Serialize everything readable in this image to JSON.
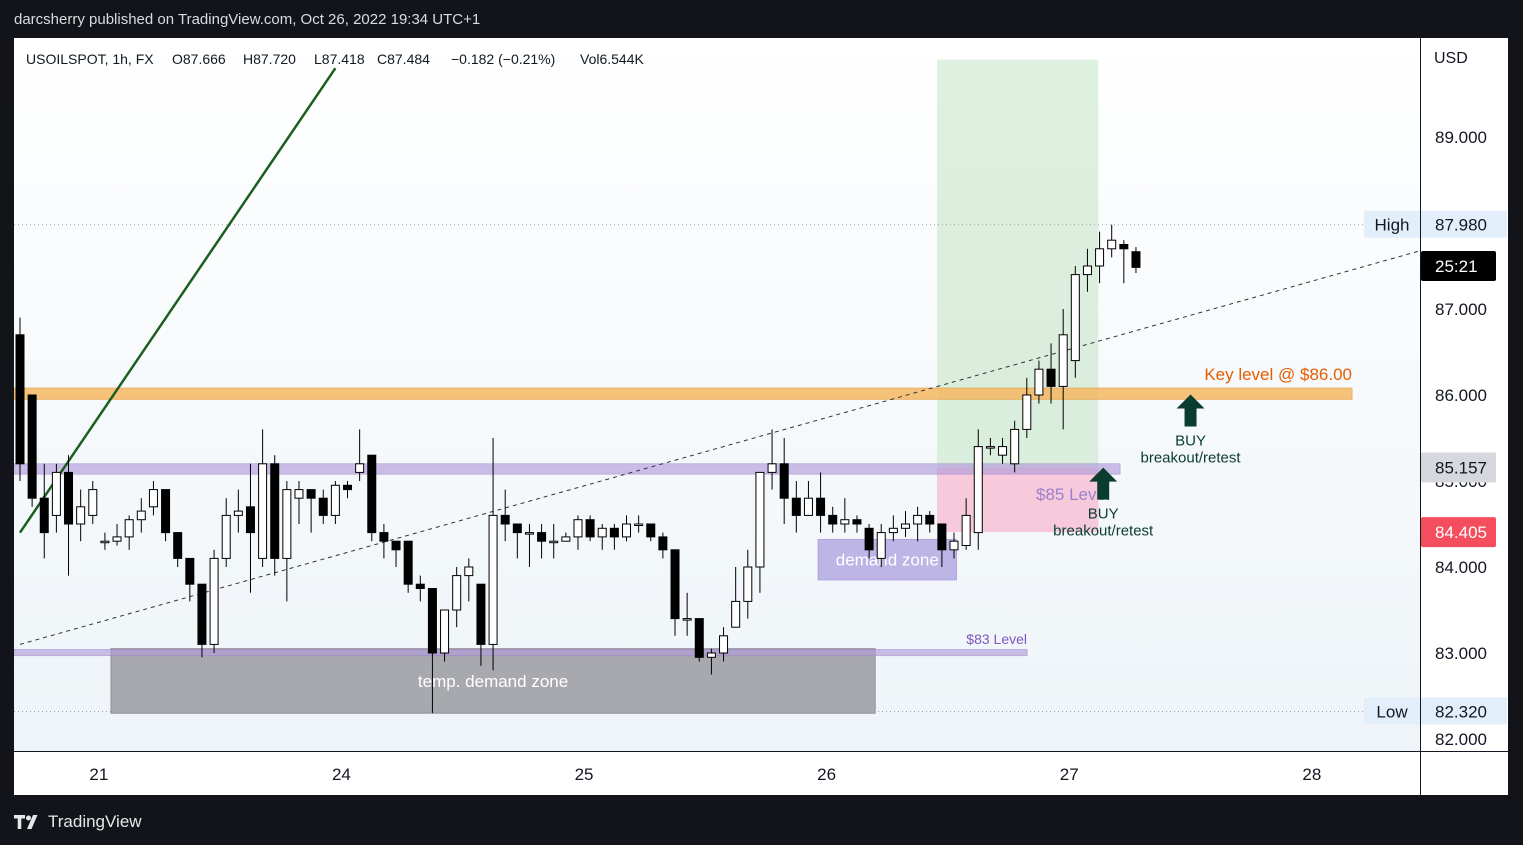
{
  "header": {
    "publisher_line": "darcsherry published on TradingView.com, Oct 26, 2022 19:34 UTC+1"
  },
  "legend": {
    "symbol": "USOILSPOT, 1h, FX",
    "open": "O87.666",
    "high": "H87.720",
    "low": "L87.418",
    "close": "C87.484",
    "change": "−0.182 (−0.21%)",
    "volume": "Vol6.544K"
  },
  "footer": {
    "brand": "TradingView"
  },
  "colors": {
    "frame_bg": "#121419",
    "bull_body": "#ffffff",
    "bear_body": "#000000",
    "trendline": "#1b5e20",
    "key_level": "#f7b55b",
    "level_85": "#b39ddb",
    "level_83": "#b39ddb",
    "demand_zone": "#9c9ca3",
    "demand_zone_small": "#b9aee6",
    "target_zone": "#c8e6c9",
    "stop_zone": "#f8bbd0",
    "buy_arrow": "#0b3d2e",
    "last_price_tag": "#000000",
    "red_tag": "#f44e5e",
    "current_tag": "#d6d8dd"
  },
  "chart_data": {
    "type": "candlestick",
    "symbol": "USOILSPOT",
    "interval": "1h",
    "currency": "USD",
    "ylim": [
      81.85,
      89.9
    ],
    "y_ticks": [
      "89.000",
      "87.000",
      "86.000",
      "85.000",
      "84.000",
      "83.000",
      "82.000"
    ],
    "x_ticks": [
      {
        "label": "21",
        "index": 6.5
      },
      {
        "label": "24",
        "index": 26.5
      },
      {
        "label": "25",
        "index": 46.5
      },
      {
        "label": "26",
        "index": 66.5
      },
      {
        "label": "27",
        "index": 86.5
      },
      {
        "label": "28",
        "index": 106.5
      }
    ],
    "candles": [
      [
        86.7,
        85.2,
        86.9,
        85.0
      ],
      [
        86.0,
        84.8,
        86.0,
        84.7
      ],
      [
        84.8,
        84.4,
        85.2,
        84.1
      ],
      [
        84.6,
        85.1,
        85.2,
        84.4
      ],
      [
        85.1,
        84.5,
        85.3,
        83.9
      ],
      [
        84.5,
        84.7,
        84.9,
        84.3
      ],
      [
        84.6,
        84.9,
        85.0,
        84.5
      ],
      [
        84.3,
        84.3,
        84.4,
        84.2
      ],
      [
        84.3,
        84.35,
        84.5,
        84.25
      ],
      [
        84.35,
        84.55,
        84.6,
        84.2
      ],
      [
        84.55,
        84.65,
        84.8,
        84.4
      ],
      [
        84.7,
        84.9,
        85.0,
        84.6
      ],
      [
        84.9,
        84.4,
        84.9,
        84.3
      ],
      [
        84.4,
        84.1,
        84.4,
        84.0
      ],
      [
        84.1,
        83.8,
        84.1,
        83.6
      ],
      [
        83.8,
        83.1,
        83.8,
        82.95
      ],
      [
        83.1,
        84.1,
        84.2,
        83.0
      ],
      [
        84.1,
        84.6,
        84.8,
        84.0
      ],
      [
        84.6,
        84.65,
        84.9,
        84.4
      ],
      [
        84.7,
        84.4,
        85.2,
        83.7
      ],
      [
        84.1,
        85.2,
        85.6,
        84.0
      ],
      [
        85.2,
        84.1,
        85.3,
        83.9
      ],
      [
        84.1,
        84.9,
        85.0,
        83.6
      ],
      [
        84.8,
        84.9,
        85.0,
        84.5
      ],
      [
        84.9,
        84.8,
        84.9,
        84.4
      ],
      [
        84.8,
        84.6,
        84.9,
        84.5
      ],
      [
        84.6,
        84.95,
        85.0,
        84.5
      ],
      [
        84.95,
        84.9,
        85.0,
        84.8
      ],
      [
        85.1,
        85.2,
        85.6,
        85.0
      ],
      [
        85.3,
        84.4,
        85.3,
        84.3
      ],
      [
        84.4,
        84.3,
        84.5,
        84.1
      ],
      [
        84.3,
        84.2,
        84.3,
        84.0
      ],
      [
        84.3,
        83.8,
        84.3,
        83.7
      ],
      [
        83.8,
        83.75,
        83.9,
        83.6
      ],
      [
        83.75,
        83.0,
        83.75,
        82.3
      ],
      [
        83.0,
        83.5,
        83.5,
        82.9
      ],
      [
        83.5,
        83.9,
        84.0,
        83.3
      ],
      [
        83.9,
        84.0,
        84.1,
        83.6
      ],
      [
        83.8,
        83.1,
        83.8,
        82.85
      ],
      [
        83.1,
        84.6,
        85.5,
        82.8
      ],
      [
        84.6,
        84.5,
        84.9,
        84.3
      ],
      [
        84.5,
        84.4,
        84.5,
        84.1
      ],
      [
        84.4,
        84.4,
        84.5,
        84.0
      ],
      [
        84.4,
        84.3,
        84.5,
        84.1
      ],
      [
        84.3,
        84.3,
        84.5,
        84.1
      ],
      [
        84.3,
        84.35,
        84.4,
        84.3
      ],
      [
        84.35,
        84.55,
        84.6,
        84.2
      ],
      [
        84.55,
        84.35,
        84.6,
        84.3
      ],
      [
        84.35,
        84.45,
        84.5,
        84.2
      ],
      [
        84.45,
        84.35,
        84.5,
        84.2
      ],
      [
        84.35,
        84.5,
        84.6,
        84.3
      ],
      [
        84.5,
        84.5,
        84.6,
        84.4
      ],
      [
        84.5,
        84.35,
        84.5,
        84.3
      ],
      [
        84.35,
        84.2,
        84.4,
        84.1
      ],
      [
        84.2,
        83.4,
        84.2,
        83.2
      ],
      [
        83.4,
        83.4,
        83.7,
        83.2
      ],
      [
        83.4,
        82.95,
        83.4,
        82.9
      ],
      [
        82.95,
        83.0,
        83.05,
        82.75
      ],
      [
        83.0,
        83.2,
        83.3,
        82.9
      ],
      [
        83.3,
        83.6,
        84.0,
        83.3
      ],
      [
        83.6,
        84.0,
        84.2,
        83.4
      ],
      [
        84.0,
        85.1,
        85.1,
        83.7
      ],
      [
        85.1,
        85.2,
        85.6,
        84.9
      ],
      [
        85.2,
        84.8,
        85.5,
        84.5
      ],
      [
        84.8,
        84.6,
        85.0,
        84.4
      ],
      [
        84.6,
        84.8,
        85.0,
        84.6
      ],
      [
        84.8,
        84.6,
        85.1,
        84.4
      ],
      [
        84.6,
        84.5,
        84.7,
        84.4
      ],
      [
        84.5,
        84.55,
        84.8,
        84.4
      ],
      [
        84.55,
        84.5,
        84.6,
        84.4
      ],
      [
        84.45,
        84.2,
        84.5,
        84.1
      ],
      [
        84.1,
        84.4,
        84.5,
        84.0
      ],
      [
        84.4,
        84.45,
        84.6,
        84.3
      ],
      [
        84.45,
        84.5,
        84.65,
        84.35
      ],
      [
        84.5,
        84.6,
        84.7,
        84.3
      ],
      [
        84.6,
        84.5,
        84.65,
        84.4
      ],
      [
        84.5,
        84.2,
        84.5,
        84.0
      ],
      [
        84.2,
        84.3,
        84.4,
        84.1
      ],
      [
        84.25,
        84.6,
        84.8,
        84.2
      ],
      [
        84.4,
        85.4,
        85.6,
        84.2
      ],
      [
        85.4,
        85.4,
        85.5,
        85.3
      ],
      [
        85.3,
        85.4,
        85.5,
        85.2
      ],
      [
        85.2,
        85.6,
        85.7,
        85.1
      ],
      [
        85.6,
        86.0,
        86.2,
        85.5
      ],
      [
        86.0,
        86.3,
        86.4,
        85.9
      ],
      [
        86.3,
        86.1,
        86.6,
        85.9
      ],
      [
        86.1,
        86.7,
        87.0,
        85.6
      ],
      [
        86.4,
        87.4,
        87.5,
        86.2
      ],
      [
        87.4,
        87.5,
        87.7,
        87.2
      ],
      [
        87.5,
        87.7,
        87.9,
        87.3
      ],
      [
        87.7,
        87.8,
        87.98,
        87.6
      ],
      [
        87.75,
        87.7,
        87.8,
        87.3
      ],
      [
        87.666,
        87.484,
        87.72,
        87.418
      ]
    ],
    "trendline": {
      "points": [
        [
          0,
          84.4
        ],
        [
          26,
          89.8
        ]
      ]
    },
    "dashed_trendline": {
      "points": [
        [
          0,
          83.1
        ],
        [
          116,
          87.7
        ]
      ]
    },
    "horizontal_levels": [
      {
        "label": "Key level @ $86.00",
        "price_low": 85.95,
        "price_high": 86.08,
        "color": "#f7b55b"
      },
      {
        "label": "$85 Level",
        "price_low": 85.08,
        "price_high": 85.2,
        "color": "#b39ddb"
      },
      {
        "label": "$83 Level",
        "price_low": 82.97,
        "price_high": 83.04,
        "color": "#b39ddb"
      }
    ],
    "zones": [
      {
        "label": "temp. demand zone",
        "index_start": 7.5,
        "index_end": 70.5,
        "price_low": 82.3,
        "price_high": 83.05,
        "color": "#9c9ca3"
      },
      {
        "label": "demand zone",
        "index_start": 65.8,
        "index_end": 77.2,
        "price_low": 83.85,
        "price_high": 84.32,
        "color": "#b9aee6"
      }
    ],
    "position_tool": {
      "index_start": 75.6,
      "index_end": 88.9,
      "target_high": 89.9,
      "entry": 85.157,
      "stop": 84.405
    },
    "annotations": [
      {
        "lines": [
          "BUY",
          "breakout/retest"
        ],
        "arrow_index": 96.5,
        "arrow_price": 85.75
      },
      {
        "lines": [
          "BUY",
          "breakout/retest"
        ],
        "arrow_index": 89.3,
        "arrow_price": 84.9
      }
    ],
    "high_low": {
      "high": 87.98,
      "low": 82.32,
      "high_label": "High",
      "low_label": "Low",
      "high_value": "87.980",
      "low_value": "82.320"
    },
    "price_tags": [
      {
        "value": "25:21",
        "price": 87.5,
        "kind": "timer"
      },
      {
        "value": "85.157",
        "price": 85.157,
        "kind": "current"
      },
      {
        "value": "84.405",
        "price": 84.405,
        "kind": "stop"
      }
    ],
    "axis_label": "USD"
  }
}
